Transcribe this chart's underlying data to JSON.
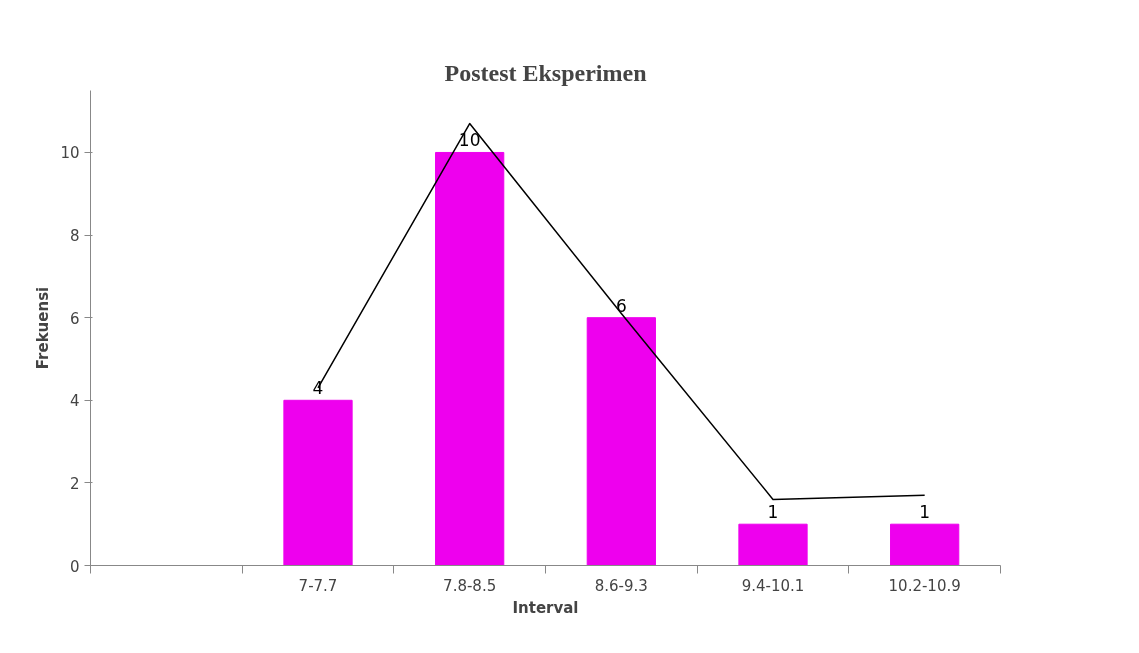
{
  "chart_data": {
    "type": "bar",
    "title": "Postest Eksperimen",
    "xlabel": "Interval",
    "ylabel": "Frekuensi",
    "categories": [
      null,
      "7-7.7",
      "7.8-8.5",
      "8.6-9.3",
      "9.4-10.1",
      "10.2-10.9"
    ],
    "series": [
      {
        "color": "#ee00ee",
        "values": [
          null,
          4,
          10,
          6,
          1,
          1
        ],
        "value_labels": [
          null,
          "4",
          "10",
          "6",
          "1",
          "1"
        ]
      },
      {
        "type": "line",
        "color": "#000000",
        "values": [
          null,
          4.3,
          10.7,
          6.1,
          1.6,
          1.7
        ]
      }
    ],
    "ylim": [
      0,
      11.5
    ],
    "yticks": [
      0,
      2,
      4,
      6,
      8,
      10
    ],
    "grid": false
  }
}
